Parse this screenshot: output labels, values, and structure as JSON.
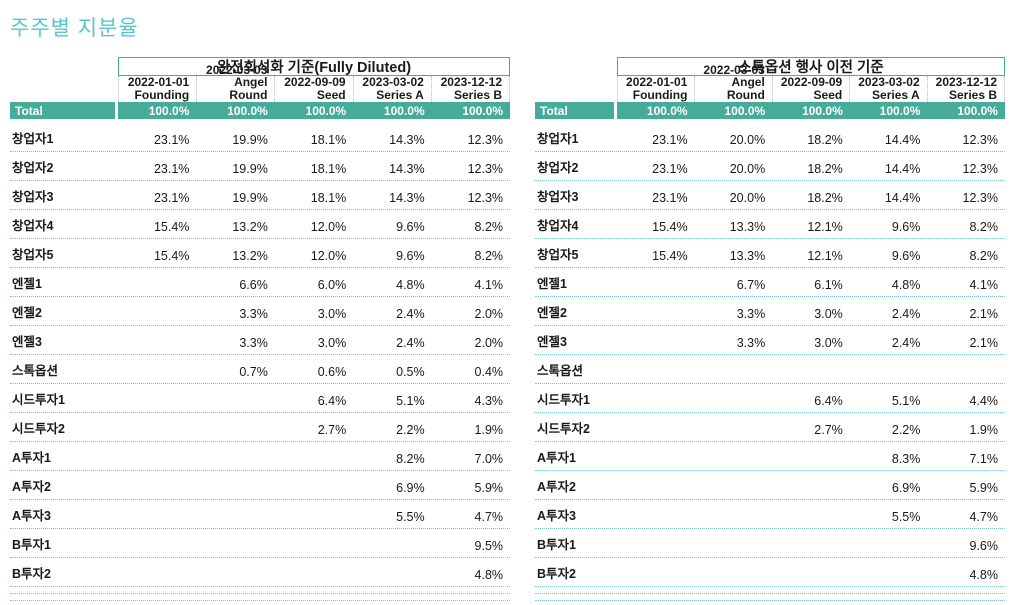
{
  "title": "주주별 지분율",
  "colors": {
    "accent_teal": "#47ab99",
    "title_cyan": "#57c6cd",
    "dotted_row_line": "#74c3d6",
    "header_separator": "#b5bdc0"
  },
  "columns": [
    {
      "date": "2022-01-01",
      "round": "Founding"
    },
    {
      "date": "2022-03-03",
      "round": "Angel Round"
    },
    {
      "date": "2022-09-09",
      "round": "Seed"
    },
    {
      "date": "2023-03-02",
      "round": "Series A"
    },
    {
      "date": "2023-12-12",
      "round": "Series B"
    }
  ],
  "tables": [
    {
      "title": "완전희석화 기준(Fully Diluted)",
      "total_label": "Total",
      "totals": [
        "100.0%",
        "100.0%",
        "100.0%",
        "100.0%",
        "100.0%"
      ],
      "rows": [
        {
          "label": "창업자1",
          "values": [
            "23.1%",
            "19.9%",
            "18.1%",
            "14.3%",
            "12.3%"
          ]
        },
        {
          "label": "창업자2",
          "values": [
            "23.1%",
            "19.9%",
            "18.1%",
            "14.3%",
            "12.3%"
          ]
        },
        {
          "label": "창업자3",
          "values": [
            "23.1%",
            "19.9%",
            "18.1%",
            "14.3%",
            "12.3%"
          ]
        },
        {
          "label": "창업자4",
          "values": [
            "15.4%",
            "13.2%",
            "12.0%",
            "9.6%",
            "8.2%"
          ]
        },
        {
          "label": "창업자5",
          "values": [
            "15.4%",
            "13.2%",
            "12.0%",
            "9.6%",
            "8.2%"
          ]
        },
        {
          "label": "엔젤1",
          "values": [
            "",
            "6.6%",
            "6.0%",
            "4.8%",
            "4.1%"
          ]
        },
        {
          "label": "엔젤2",
          "values": [
            "",
            "3.3%",
            "3.0%",
            "2.4%",
            "2.0%"
          ]
        },
        {
          "label": "엔젤3",
          "values": [
            "",
            "3.3%",
            "3.0%",
            "2.4%",
            "2.0%"
          ]
        },
        {
          "label": "스톡옵션",
          "values": [
            "",
            "0.7%",
            "0.6%",
            "0.5%",
            "0.4%"
          ]
        },
        {
          "label": "시드투자1",
          "values": [
            "",
            "",
            "6.4%",
            "5.1%",
            "4.3%"
          ]
        },
        {
          "label": "시드투자2",
          "values": [
            "",
            "",
            "2.7%",
            "2.2%",
            "1.9%"
          ]
        },
        {
          "label": "A투자1",
          "values": [
            "",
            "",
            "",
            "8.2%",
            "7.0%"
          ]
        },
        {
          "label": "A투자2",
          "values": [
            "",
            "",
            "",
            "6.9%",
            "5.9%"
          ]
        },
        {
          "label": "A투자3",
          "values": [
            "",
            "",
            "",
            "5.5%",
            "4.7%"
          ]
        },
        {
          "label": "B투자1",
          "values": [
            "",
            "",
            "",
            "",
            "9.5%"
          ]
        },
        {
          "label": "B투자2",
          "values": [
            "",
            "",
            "",
            "",
            "4.8%"
          ]
        }
      ]
    },
    {
      "title": "스톡옵션 행사 이전 기준",
      "total_label": "Total",
      "totals": [
        "100.0%",
        "100.0%",
        "100.0%",
        "100.0%",
        "100.0%"
      ],
      "rows": [
        {
          "label": "창업자1",
          "values": [
            "23.1%",
            "20.0%",
            "18.2%",
            "14.4%",
            "12.3%"
          ]
        },
        {
          "label": "창업자2",
          "values": [
            "23.1%",
            "20.0%",
            "18.2%",
            "14.4%",
            "12.3%"
          ]
        },
        {
          "label": "창업자3",
          "values": [
            "23.1%",
            "20.0%",
            "18.2%",
            "14.4%",
            "12.3%"
          ]
        },
        {
          "label": "창업자4",
          "values": [
            "15.4%",
            "13.3%",
            "12.1%",
            "9.6%",
            "8.2%"
          ]
        },
        {
          "label": "창업자5",
          "values": [
            "15.4%",
            "13.3%",
            "12.1%",
            "9.6%",
            "8.2%"
          ]
        },
        {
          "label": "엔젤1",
          "values": [
            "",
            "6.7%",
            "6.1%",
            "4.8%",
            "4.1%"
          ]
        },
        {
          "label": "엔젤2",
          "values": [
            "",
            "3.3%",
            "3.0%",
            "2.4%",
            "2.1%"
          ]
        },
        {
          "label": "엔젤3",
          "values": [
            "",
            "3.3%",
            "3.0%",
            "2.4%",
            "2.1%"
          ]
        },
        {
          "label": "스톡옵션",
          "values": [
            "",
            "",
            "",
            "",
            ""
          ]
        },
        {
          "label": "시드투자1",
          "values": [
            "",
            "",
            "6.4%",
            "5.1%",
            "4.4%"
          ]
        },
        {
          "label": "시드투자2",
          "values": [
            "",
            "",
            "2.7%",
            "2.2%",
            "1.9%"
          ]
        },
        {
          "label": "A투자1",
          "values": [
            "",
            "",
            "",
            "8.3%",
            "7.1%"
          ]
        },
        {
          "label": "A투자2",
          "values": [
            "",
            "",
            "",
            "6.9%",
            "5.9%"
          ]
        },
        {
          "label": "A투자3",
          "values": [
            "",
            "",
            "",
            "5.5%",
            "4.7%"
          ]
        },
        {
          "label": "B투자1",
          "values": [
            "",
            "",
            "",
            "",
            "9.6%"
          ]
        },
        {
          "label": "B투자2",
          "values": [
            "",
            "",
            "",
            "",
            "4.8%"
          ]
        }
      ]
    }
  ]
}
